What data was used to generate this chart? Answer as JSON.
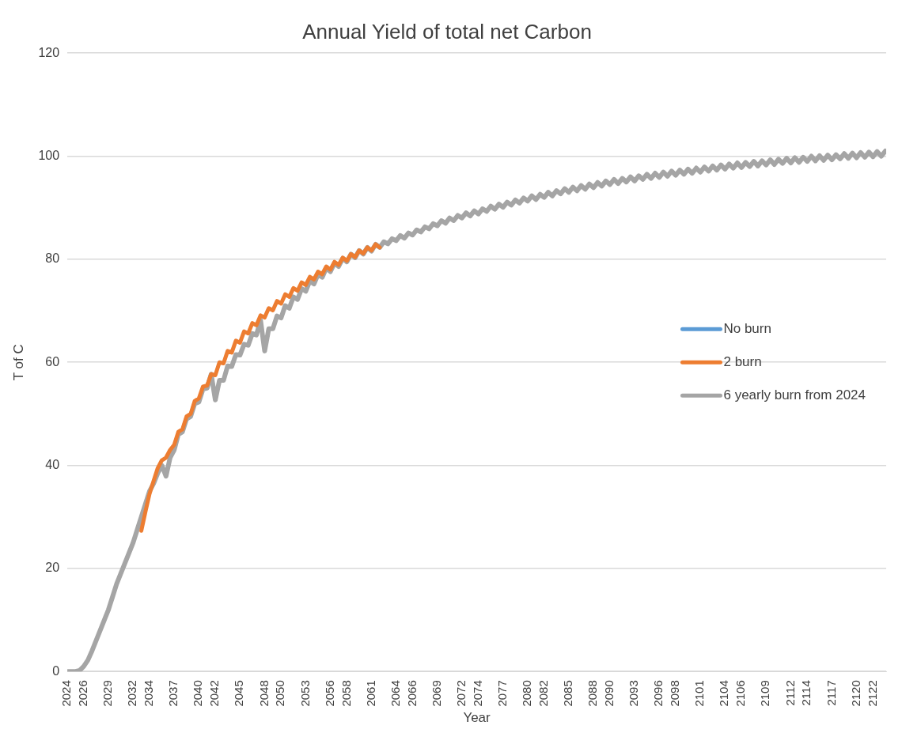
{
  "chart_data": {
    "type": "line",
    "title": "Annual Yield of total net Carbon",
    "xlabel": "Year",
    "ylabel": "T of C",
    "xlim": [
      2024,
      2123.6
    ],
    "xticks": [
      2024,
      2026,
      2029,
      2032,
      2034,
      2037,
      2040,
      2042,
      2045,
      2048,
      2050,
      2053,
      2056,
      2058,
      2061,
      2064,
      2066,
      2069,
      2072,
      2074,
      2077,
      2080,
      2082,
      2085,
      2088,
      2090,
      2093,
      2096,
      2098,
      2101,
      2104,
      2106,
      2109,
      2112,
      2114,
      2117,
      2120,
      2122
    ],
    "ylim": [
      0,
      120
    ],
    "yticks": [
      0,
      20,
      40,
      60,
      80,
      100,
      120
    ],
    "grid": "y",
    "legend": "right",
    "marker": "none",
    "line_style": "solid",
    "series": [
      {
        "name": "No burn",
        "color": "#5b9bd5"
      },
      {
        "name": "2 burn",
        "color": "#ed7d31",
        "x": [
          2033,
          2033.5,
          2034,
          2034.5,
          2035,
          2035.5,
          2036,
          2036.5,
          2037,
          2037.5,
          2038,
          2038.5,
          2039,
          2039.5,
          2040,
          2040.5,
          2041,
          2041.5,
          2042,
          2042.5,
          2043,
          2043.5,
          2044,
          2044.5,
          2045,
          2045.5,
          2046,
          2046.5,
          2047,
          2047.5,
          2048,
          2048.5,
          2049,
          2049.5,
          2050,
          2050.5,
          2051,
          2051.5,
          2052,
          2052.5,
          2053,
          2053.5,
          2054,
          2054.5,
          2055,
          2055.5,
          2056,
          2056.5,
          2057,
          2057.5,
          2058,
          2058.5,
          2059,
          2059.5,
          2060,
          2060.5,
          2061,
          2061.5,
          2062
        ],
        "values": [
          27.3,
          31,
          34.5,
          37,
          39.5,
          41,
          41.5,
          43,
          44,
          46.5,
          47,
          49.5,
          50,
          52.5,
          53,
          55.3,
          55.5,
          57.7,
          57.5,
          60,
          59.8,
          62.2,
          61.9,
          64.2,
          63.8,
          66,
          65.6,
          67.6,
          67.2,
          69.1,
          68.7,
          70.5,
          70.1,
          71.9,
          71.4,
          73.2,
          72.7,
          74.4,
          73.9,
          75.5,
          75,
          76.6,
          76.1,
          77.6,
          77.1,
          78.6,
          78,
          79.5,
          78.9,
          80.3,
          79.7,
          81,
          80.4,
          81.7,
          81.1,
          82.3,
          81.7,
          82.9,
          82.3
        ]
      },
      {
        "name": "6 yearly burn from 2024",
        "color": "#a5a5a5",
        "x": [
          2024,
          2024.5,
          2025,
          2025.5,
          2026,
          2026.5,
          2027,
          2027.5,
          2028,
          2028.5,
          2029,
          2029.5,
          2030,
          2030.5,
          2031,
          2031.5,
          2032,
          2032.5,
          2033,
          2033.5,
          2034,
          2034.5,
          2035,
          2035.5,
          2036,
          2036.5,
          2037,
          2037.5,
          2038,
          2038.5,
          2039,
          2039.5,
          2040,
          2040.5,
          2041,
          2041.5,
          2042,
          2042.5,
          2043,
          2043.5,
          2044,
          2044.5,
          2045,
          2045.5,
          2046,
          2046.5,
          2047,
          2047.5,
          2048,
          2048.5,
          2049,
          2049.5,
          2050,
          2050.5,
          2051,
          2051.5,
          2052,
          2052.5,
          2053,
          2053.5,
          2054,
          2054.5,
          2055,
          2055.5,
          2056,
          2056.5,
          2057,
          2057.5,
          2058,
          2058.5,
          2059,
          2059.5,
          2060,
          2060.5,
          2061,
          2061.5,
          2062,
          2062.5,
          2063,
          2063.5,
          2064,
          2064.5,
          2065,
          2065.5,
          2066,
          2066.5,
          2067,
          2067.5,
          2068,
          2068.5,
          2069,
          2069.5,
          2070,
          2070.5,
          2071,
          2071.5,
          2072,
          2072.5,
          2073,
          2073.5,
          2074,
          2074.5,
          2075,
          2075.5,
          2076,
          2076.5,
          2077,
          2077.5,
          2078,
          2078.5,
          2079,
          2079.5,
          2080,
          2080.5,
          2081,
          2081.5,
          2082,
          2082.5,
          2083,
          2083.5,
          2084,
          2084.5,
          2085,
          2085.5,
          2086,
          2086.5,
          2087,
          2087.5,
          2088,
          2088.5,
          2089,
          2089.5,
          2090,
          2090.5,
          2091,
          2091.5,
          2092,
          2092.5,
          2093,
          2093.5,
          2094,
          2094.5,
          2095,
          2095.5,
          2096,
          2096.5,
          2097,
          2097.5,
          2098,
          2098.5,
          2099,
          2099.5,
          2100,
          2100.5,
          2101,
          2101.5,
          2102,
          2102.5,
          2103,
          2103.5,
          2104,
          2104.5,
          2105,
          2105.5,
          2106,
          2106.5,
          2107,
          2107.5,
          2108,
          2108.5,
          2109,
          2109.5,
          2110,
          2110.5,
          2111,
          2111.5,
          2112,
          2112.5,
          2113,
          2113.5,
          2114,
          2114.5,
          2115,
          2115.5,
          2116,
          2116.5,
          2117,
          2117.5,
          2118,
          2118.5,
          2119,
          2119.5,
          2120,
          2120.5,
          2121,
          2121.5,
          2122,
          2122.5,
          2123,
          2123.5
        ],
        "values": [
          0,
          0,
          0,
          0.2,
          1,
          2.2,
          4,
          6,
          8,
          10,
          12,
          14.5,
          17,
          19,
          21,
          23,
          25,
          27.5,
          30,
          32.5,
          35,
          36.5,
          38.5,
          40,
          37.9,
          41.5,
          43,
          46,
          46.5,
          49,
          49.5,
          52,
          52.3,
          54.8,
          55,
          57.7,
          52.7,
          56.5,
          56.5,
          59.3,
          59.2,
          61.5,
          61.4,
          63.5,
          63.3,
          65.6,
          65.3,
          68.2,
          62.2,
          66.5,
          66.5,
          69,
          68.6,
          71,
          70.5,
          72.7,
          72.2,
          74.3,
          73.8,
          75.8,
          75.2,
          77.1,
          76.5,
          78.3,
          77.6,
          79.3,
          78.6,
          80.2,
          79.5,
          81,
          80.3,
          81.7,
          81,
          82.3,
          81.6,
          82.9,
          82.3,
          83.4,
          83,
          84,
          83.6,
          84.6,
          84.1,
          85.1,
          84.7,
          85.7,
          85.3,
          86.3,
          85.9,
          86.9,
          86.5,
          87.5,
          87,
          88,
          87.5,
          88.5,
          88,
          89,
          88.4,
          89.4,
          88.8,
          89.8,
          89.3,
          90.3,
          89.7,
          90.7,
          90.1,
          91.1,
          90.5,
          91.5,
          90.9,
          91.9,
          91.3,
          92.3,
          91.6,
          92.6,
          92,
          93,
          92.3,
          93.3,
          92.7,
          93.7,
          93,
          94,
          93.3,
          94.3,
          93.6,
          94.6,
          93.9,
          94.9,
          94.2,
          95.2,
          94.5,
          95.5,
          94.7,
          95.7,
          95,
          96,
          95.2,
          96.2,
          95.5,
          96.5,
          95.7,
          96.7,
          95.9,
          96.9,
          96.1,
          97.1,
          96.3,
          97.3,
          96.5,
          97.5,
          96.7,
          97.7,
          96.9,
          97.9,
          97.1,
          98.1,
          97.3,
          98.3,
          97.5,
          98.5,
          97.7,
          98.7,
          97.8,
          98.8,
          98,
          99,
          98.1,
          99.1,
          98.3,
          99.3,
          98.4,
          99.4,
          98.6,
          99.6,
          98.7,
          99.7,
          98.8,
          99.8,
          99,
          100,
          99.1,
          100.1,
          99.2,
          100.2,
          99.3,
          100.3,
          99.5,
          100.5,
          99.6,
          100.6,
          99.7,
          100.7,
          99.8,
          100.8,
          99.9,
          100.9,
          100,
          101
        ]
      }
    ]
  }
}
